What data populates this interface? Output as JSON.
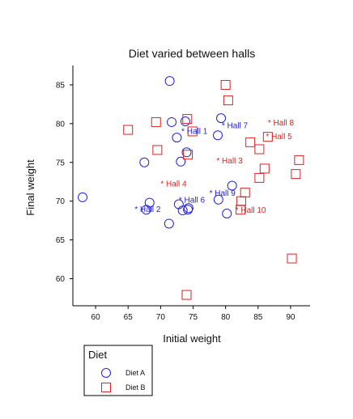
{
  "chart_data": {
    "type": "scatter",
    "title": "Diet varied between halls",
    "xlabel": "Initial weight",
    "ylabel": "Final weight",
    "xlim": [
      56.5,
      93
    ],
    "ylim": [
      56.5,
      87.5
    ],
    "xticks": [
      60,
      65,
      70,
      75,
      80,
      85,
      90
    ],
    "yticks": [
      60,
      65,
      70,
      75,
      80,
      85
    ],
    "legend": {
      "title": "Diet",
      "position": "bottom-left",
      "items": [
        {
          "label": "Diet A",
          "marker": "circle",
          "color": "#2222dd"
        },
        {
          "label": "Diet B",
          "marker": "square",
          "color": "#dd2222"
        }
      ]
    },
    "series": [
      {
        "name": "Diet A",
        "color": "#2222dd",
        "marker": "circle",
        "points": [
          [
            71.4,
            85.5
          ],
          [
            58.0,
            70.5
          ],
          [
            67.5,
            75.0
          ],
          [
            68.3,
            69.8
          ],
          [
            67.8,
            68.9
          ],
          [
            71.3,
            67.1
          ],
          [
            71.7,
            80.2
          ],
          [
            72.5,
            78.2
          ],
          [
            73.8,
            80.3
          ],
          [
            74.0,
            76.3
          ],
          [
            73.1,
            75.1
          ],
          [
            72.8,
            69.6
          ],
          [
            73.4,
            68.8
          ],
          [
            74.2,
            68.9
          ],
          [
            74.3,
            69.1
          ],
          [
            78.8,
            78.5
          ],
          [
            79.3,
            80.7
          ],
          [
            78.9,
            70.2
          ],
          [
            81.0,
            72.0
          ],
          [
            80.2,
            68.4
          ]
        ]
      },
      {
        "name": "Diet B",
        "color": "#dd2222",
        "marker": "square",
        "points": [
          [
            80.0,
            85.0
          ],
          [
            80.4,
            83.0
          ],
          [
            74.1,
            80.6
          ],
          [
            69.3,
            80.2
          ],
          [
            65.0,
            79.2
          ],
          [
            74.9,
            79.0
          ],
          [
            69.5,
            76.6
          ],
          [
            74.2,
            76.0
          ],
          [
            83.8,
            77.6
          ],
          [
            85.2,
            76.7
          ],
          [
            86.5,
            78.3
          ],
          [
            91.3,
            75.3
          ],
          [
            90.8,
            73.5
          ],
          [
            86.0,
            74.2
          ],
          [
            85.2,
            73.0
          ],
          [
            83.0,
            71.1
          ],
          [
            82.4,
            70.0
          ],
          [
            82.3,
            68.9
          ],
          [
            90.2,
            62.6
          ],
          [
            74.0,
            57.9
          ]
        ]
      }
    ],
    "annotations": [
      {
        "text": "Hall 1",
        "x": 73.2,
        "y": 79.0,
        "color": "#2222dd"
      },
      {
        "text": "Hall 2",
        "x": 66.0,
        "y": 68.9,
        "color": "#2222dd"
      },
      {
        "text": "Hall 3",
        "x": 78.6,
        "y": 75.2,
        "color": "#dd2222"
      },
      {
        "text": "Hall 4",
        "x": 70.0,
        "y": 72.2,
        "color": "#dd2222"
      },
      {
        "text": "Hall 5",
        "x": 86.2,
        "y": 78.3,
        "color": "#dd2222"
      },
      {
        "text": "Hall 6",
        "x": 72.8,
        "y": 70.1,
        "color": "#2222dd"
      },
      {
        "text": "Hall 7",
        "x": 79.4,
        "y": 79.7,
        "color": "#2222dd"
      },
      {
        "text": "Hall 8",
        "x": 86.5,
        "y": 80.1,
        "color": "#dd2222"
      },
      {
        "text": "Hall 9",
        "x": 77.5,
        "y": 71.0,
        "color": "#2222dd"
      },
      {
        "text": "Hall 10",
        "x": 81.5,
        "y": 68.8,
        "color": "#dd2222"
      }
    ]
  }
}
